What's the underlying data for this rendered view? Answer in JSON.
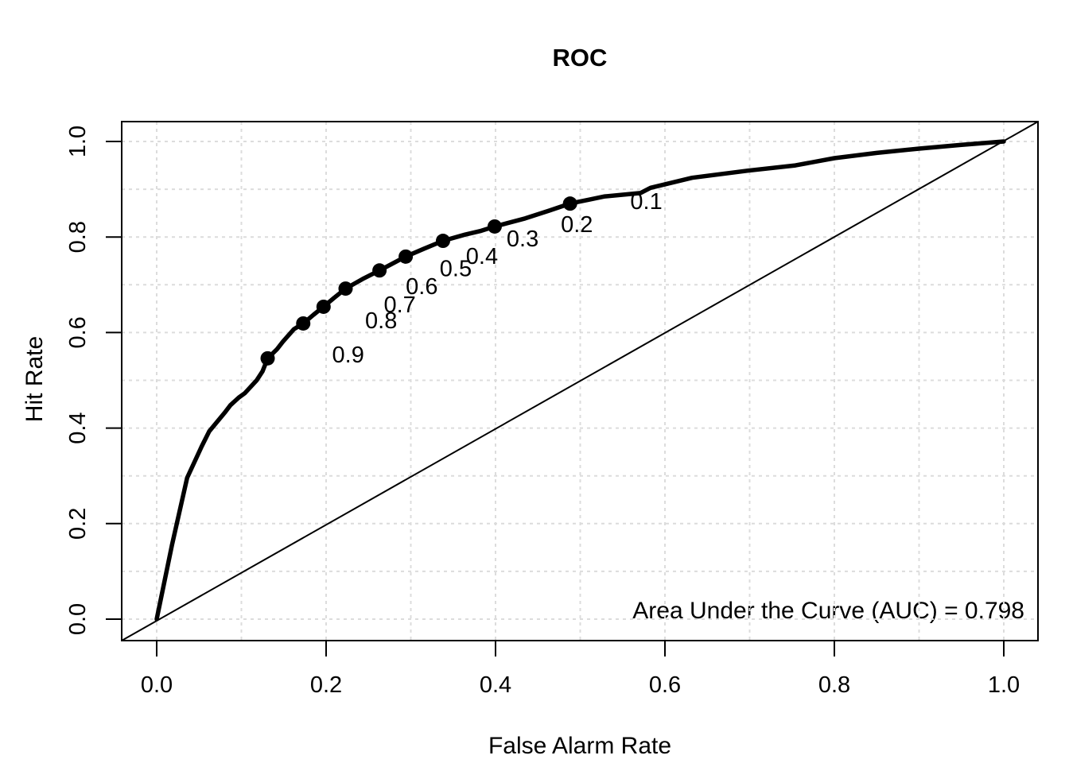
{
  "chart_data": {
    "type": "line",
    "title": "ROC",
    "xlabel": "False Alarm Rate",
    "ylabel": "Hit Rate",
    "xlim": [
      0.0,
      1.0
    ],
    "ylim": [
      0.0,
      1.0
    ],
    "x_tick_values": [
      0.0,
      0.2,
      0.4,
      0.6,
      0.8,
      1.0
    ],
    "x_tick_labels": [
      "0.0",
      "0.2",
      "0.4",
      "0.6",
      "0.8",
      "1.0"
    ],
    "y_tick_values": [
      0.0,
      0.2,
      0.4,
      0.6,
      0.8,
      1.0
    ],
    "y_tick_labels": [
      "0.0",
      "0.2",
      "0.4",
      "0.6",
      "0.8",
      "1.0"
    ],
    "grid": {
      "show": true,
      "interval": 0.1,
      "style": "dashed"
    },
    "legend": {
      "show": false
    },
    "colors": {
      "curve": "#000000",
      "diagonal": "#000000",
      "grid": "#dcdcdc",
      "background": "#ffffff",
      "text": "#000000"
    },
    "series": [
      {
        "name": "ROC curve",
        "role": "roc",
        "points": [
          [
            0.0,
            0.0
          ],
          [
            0.018,
            0.155
          ],
          [
            0.036,
            0.296
          ],
          [
            0.049,
            0.346
          ],
          [
            0.053,
            0.361
          ],
          [
            0.062,
            0.393
          ],
          [
            0.081,
            0.434
          ],
          [
            0.087,
            0.448
          ],
          [
            0.097,
            0.464
          ],
          [
            0.104,
            0.473
          ],
          [
            0.118,
            0.5
          ],
          [
            0.125,
            0.519
          ],
          [
            0.131,
            0.546
          ],
          [
            0.142,
            0.565
          ],
          [
            0.149,
            0.581
          ],
          [
            0.162,
            0.607
          ],
          [
            0.173,
            0.619
          ],
          [
            0.185,
            0.637
          ],
          [
            0.197,
            0.654
          ],
          [
            0.209,
            0.672
          ],
          [
            0.223,
            0.692
          ],
          [
            0.243,
            0.712
          ],
          [
            0.263,
            0.73
          ],
          [
            0.279,
            0.745
          ],
          [
            0.294,
            0.759
          ],
          [
            0.315,
            0.775
          ],
          [
            0.338,
            0.792
          ],
          [
            0.364,
            0.805
          ],
          [
            0.383,
            0.813
          ],
          [
            0.399,
            0.822
          ],
          [
            0.435,
            0.839
          ],
          [
            0.463,
            0.855
          ],
          [
            0.488,
            0.87
          ],
          [
            0.51,
            0.878
          ],
          [
            0.529,
            0.885
          ],
          [
            0.571,
            0.892
          ],
          [
            0.583,
            0.903
          ],
          [
            0.632,
            0.924
          ],
          [
            0.698,
            0.939
          ],
          [
            0.754,
            0.95
          ],
          [
            0.8,
            0.965
          ],
          [
            0.85,
            0.976
          ],
          [
            0.9,
            0.985
          ],
          [
            0.95,
            0.993
          ],
          [
            1.0,
            1.0
          ]
        ]
      },
      {
        "name": "chance diagonal",
        "role": "diagonal",
        "points": [
          [
            0.0,
            0.0
          ],
          [
            1.0,
            1.0
          ]
        ]
      }
    ],
    "cutoffs": [
      {
        "label": "0.1",
        "x": 0.488,
        "y": 0.87,
        "label_x": 0.578,
        "label_y": 0.875
      },
      {
        "label": "0.2",
        "x": 0.399,
        "y": 0.822,
        "label_x": 0.496,
        "label_y": 0.827
      },
      {
        "label": "0.3",
        "x": 0.338,
        "y": 0.792,
        "label_x": 0.432,
        "label_y": 0.797
      },
      {
        "label": "0.4",
        "x": 0.294,
        "y": 0.759,
        "label_x": 0.384,
        "label_y": 0.76
      },
      {
        "label": "0.5",
        "x": 0.263,
        "y": 0.73,
        "label_x": 0.353,
        "label_y": 0.735
      },
      {
        "label": "0.6",
        "x": 0.223,
        "y": 0.692,
        "label_x": 0.313,
        "label_y": 0.697
      },
      {
        "label": "0.7",
        "x": 0.197,
        "y": 0.654,
        "label_x": 0.287,
        "label_y": 0.659
      },
      {
        "label": "0.8",
        "x": 0.173,
        "y": 0.619,
        "label_x": 0.265,
        "label_y": 0.626
      },
      {
        "label": "0.9",
        "x": 0.131,
        "y": 0.546,
        "label_x": 0.226,
        "label_y": 0.554
      }
    ],
    "annotation": "Area Under the Curve (AUC) = 0.798",
    "auc": 0.798
  }
}
